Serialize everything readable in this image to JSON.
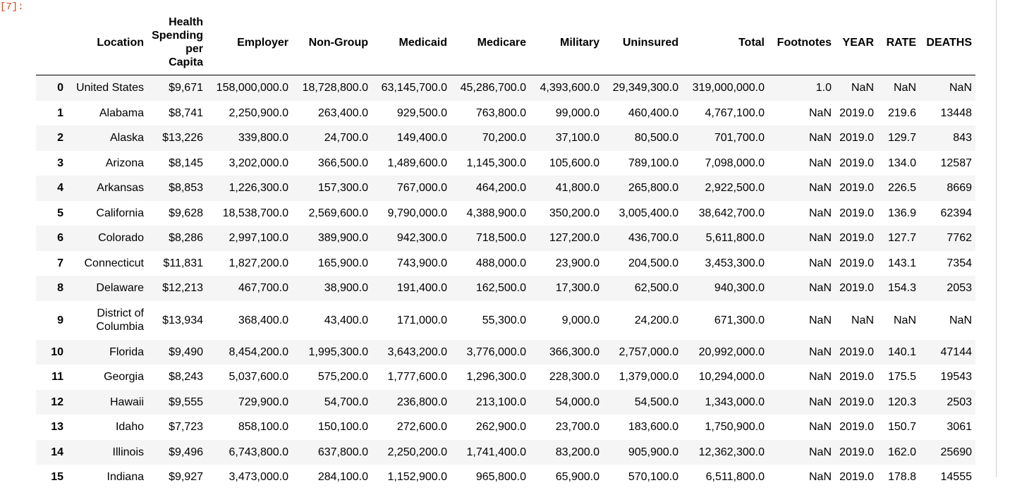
{
  "prompt": "[7]:",
  "table": {
    "columns": [
      "",
      "Location",
      "Health Spending per Capita",
      "Employer",
      "Non-Group",
      "Medicaid",
      "Medicare",
      "Military",
      "Uninsured",
      "Total",
      "Footnotes",
      "YEAR",
      "RATE",
      "DEATHS"
    ],
    "rows": [
      [
        "0",
        "United States",
        "$9,671",
        "158,000,000.0",
        "18,728,800.0",
        "63,145,700.0",
        "45,286,700.0",
        "4,393,600.0",
        "29,349,300.0",
        "319,000,000.0",
        "1.0",
        "NaN",
        "NaN",
        "NaN"
      ],
      [
        "1",
        "Alabama",
        "$8,741",
        "2,250,900.0",
        "263,400.0",
        "929,500.0",
        "763,800.0",
        "99,000.0",
        "460,400.0",
        "4,767,100.0",
        "NaN",
        "2019.0",
        "219.6",
        "13448"
      ],
      [
        "2",
        "Alaska",
        "$13,226",
        "339,800.0",
        "24,700.0",
        "149,400.0",
        "70,200.0",
        "37,100.0",
        "80,500.0",
        "701,700.0",
        "NaN",
        "2019.0",
        "129.7",
        "843"
      ],
      [
        "3",
        "Arizona",
        "$8,145",
        "3,202,000.0",
        "366,500.0",
        "1,489,600.0",
        "1,145,300.0",
        "105,600.0",
        "789,100.0",
        "7,098,000.0",
        "NaN",
        "2019.0",
        "134.0",
        "12587"
      ],
      [
        "4",
        "Arkansas",
        "$8,853",
        "1,226,300.0",
        "157,300.0",
        "767,000.0",
        "464,200.0",
        "41,800.0",
        "265,800.0",
        "2,922,500.0",
        "NaN",
        "2019.0",
        "226.5",
        "8669"
      ],
      [
        "5",
        "California",
        "$9,628",
        "18,538,700.0",
        "2,569,600.0",
        "9,790,000.0",
        "4,388,900.0",
        "350,200.0",
        "3,005,400.0",
        "38,642,700.0",
        "NaN",
        "2019.0",
        "136.9",
        "62394"
      ],
      [
        "6",
        "Colorado",
        "$8,286",
        "2,997,100.0",
        "389,900.0",
        "942,300.0",
        "718,500.0",
        "127,200.0",
        "436,700.0",
        "5,611,800.0",
        "NaN",
        "2019.0",
        "127.7",
        "7762"
      ],
      [
        "7",
        "Connecticut",
        "$11,831",
        "1,827,200.0",
        "165,900.0",
        "743,900.0",
        "488,000.0",
        "23,900.0",
        "204,500.0",
        "3,453,300.0",
        "NaN",
        "2019.0",
        "143.1",
        "7354"
      ],
      [
        "8",
        "Delaware",
        "$12,213",
        "467,700.0",
        "38,900.0",
        "191,400.0",
        "162,500.0",
        "17,300.0",
        "62,500.0",
        "940,300.0",
        "NaN",
        "2019.0",
        "154.3",
        "2053"
      ],
      [
        "9",
        "District of Columbia",
        "$13,934",
        "368,400.0",
        "43,400.0",
        "171,000.0",
        "55,300.0",
        "9,000.0",
        "24,200.0",
        "671,300.0",
        "NaN",
        "NaN",
        "NaN",
        "NaN"
      ],
      [
        "10",
        "Florida",
        "$9,490",
        "8,454,200.0",
        "1,995,300.0",
        "3,643,200.0",
        "3,776,000.0",
        "366,300.0",
        "2,757,000.0",
        "20,992,000.0",
        "NaN",
        "2019.0",
        "140.1",
        "47144"
      ],
      [
        "11",
        "Georgia",
        "$8,243",
        "5,037,600.0",
        "575,200.0",
        "1,777,600.0",
        "1,296,300.0",
        "228,300.0",
        "1,379,000.0",
        "10,294,000.0",
        "NaN",
        "2019.0",
        "175.5",
        "19543"
      ],
      [
        "12",
        "Hawaii",
        "$9,555",
        "729,900.0",
        "54,700.0",
        "236,800.0",
        "213,100.0",
        "54,000.0",
        "54,500.0",
        "1,343,000.0",
        "NaN",
        "2019.0",
        "120.3",
        "2503"
      ],
      [
        "13",
        "Idaho",
        "$7,723",
        "858,100.0",
        "150,100.0",
        "272,600.0",
        "262,900.0",
        "23,700.0",
        "183,600.0",
        "1,750,900.0",
        "NaN",
        "2019.0",
        "150.7",
        "3061"
      ],
      [
        "14",
        "Illinois",
        "$9,496",
        "6,743,800.0",
        "637,800.0",
        "2,250,200.0",
        "1,741,400.0",
        "83,200.0",
        "905,900.0",
        "12,362,300.0",
        "NaN",
        "2019.0",
        "162.0",
        "25690"
      ],
      [
        "15",
        "Indiana",
        "$9,927",
        "3,473,000.0",
        "284,100.0",
        "1,152,900.0",
        "965,800.0",
        "65,900.0",
        "570,100.0",
        "6,511,800.0",
        "NaN",
        "2019.0",
        "178.8",
        "14555"
      ]
    ]
  }
}
